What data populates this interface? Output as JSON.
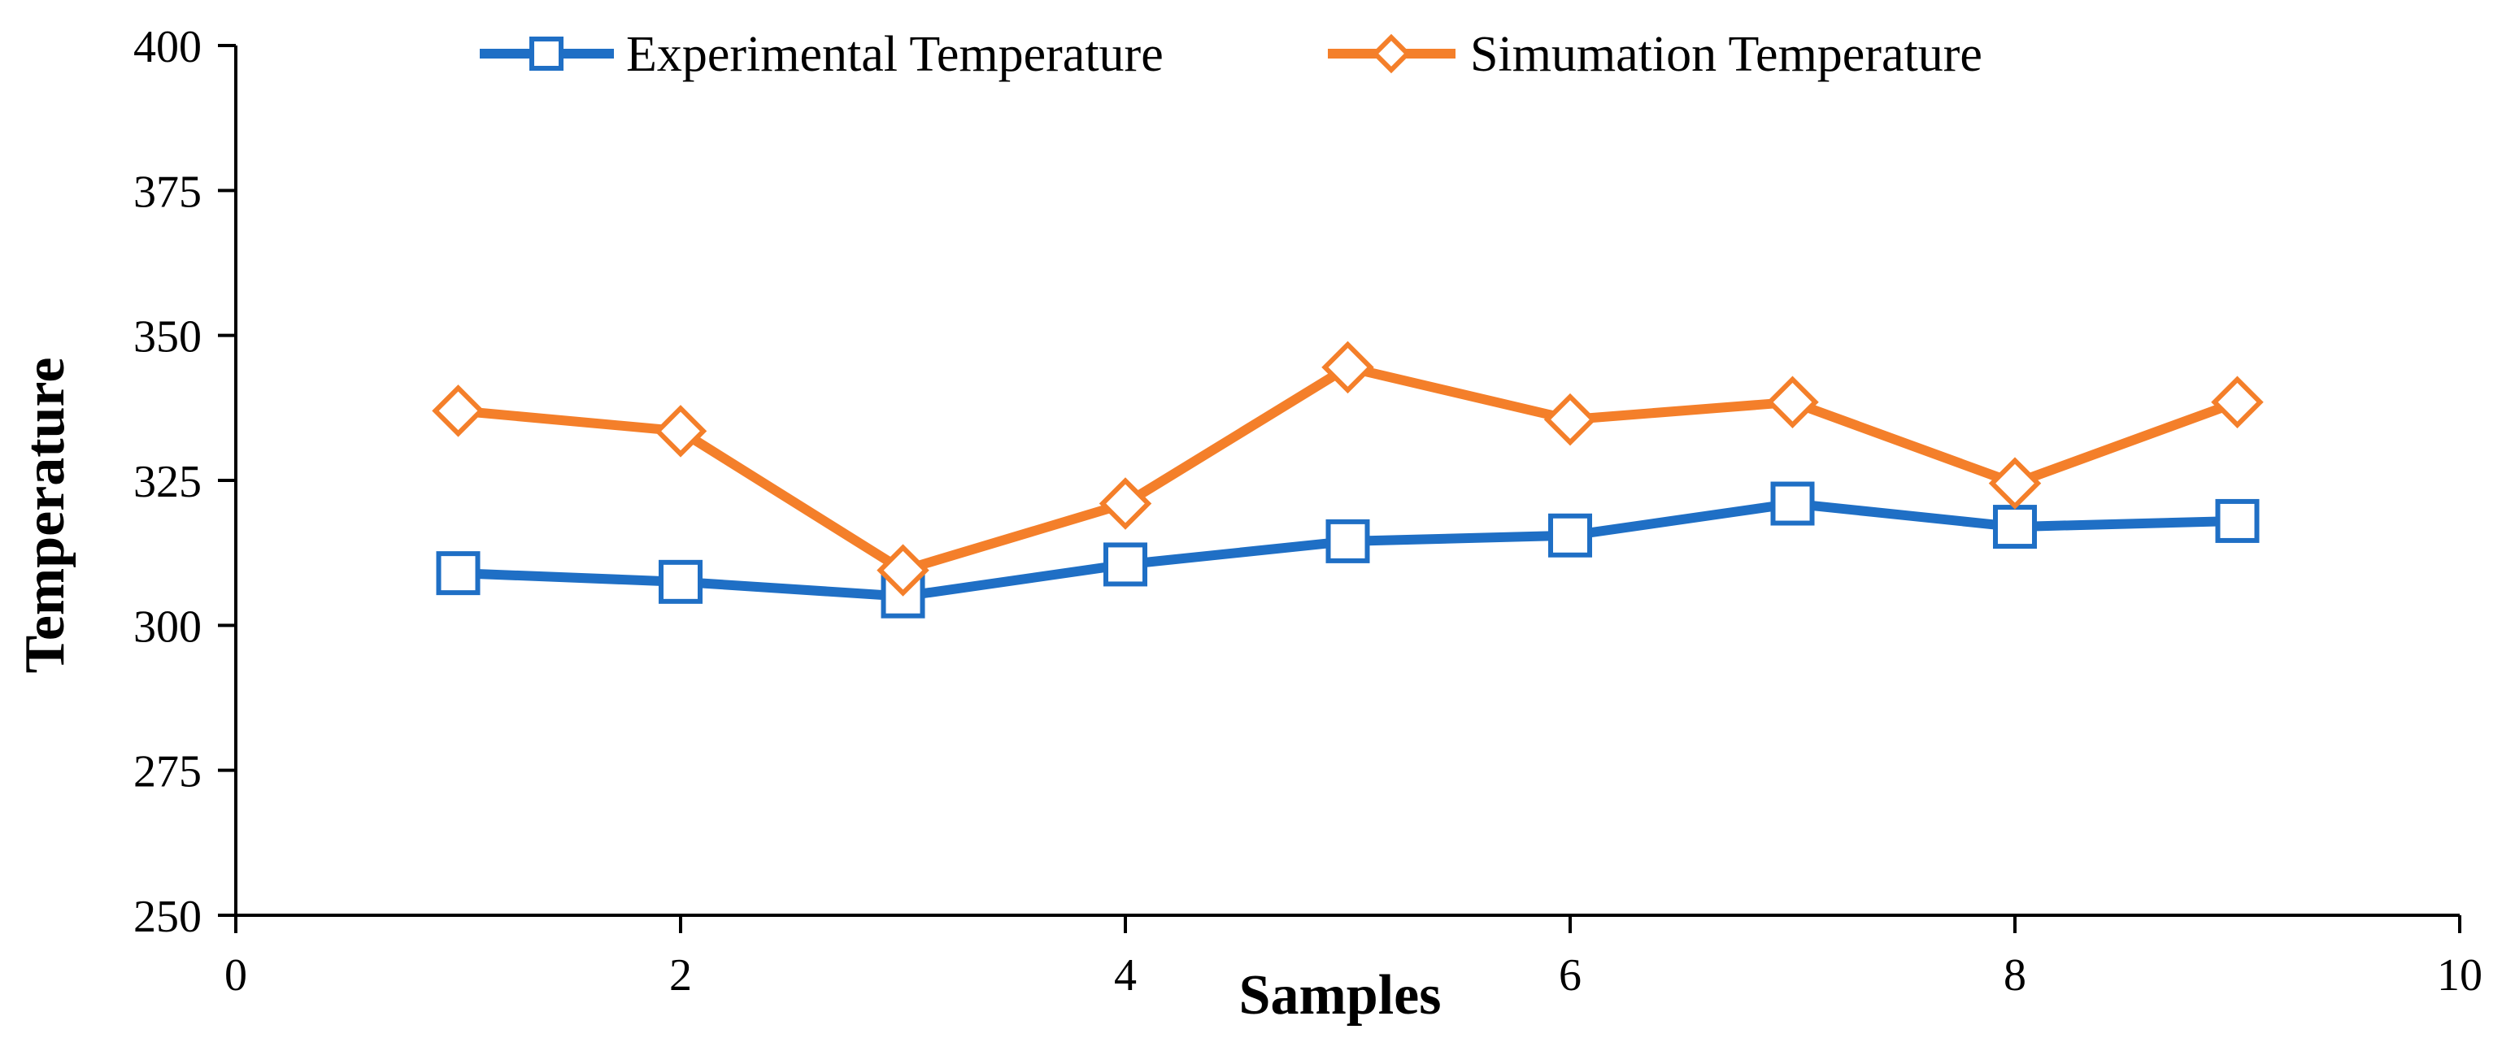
{
  "chart_data": {
    "type": "line",
    "title": "",
    "xlabel": "Samples",
    "ylabel": "Temperature",
    "xlim": [
      0,
      10
    ],
    "ylim": [
      250,
      400
    ],
    "xticks": [
      "0",
      "2",
      "4",
      "6",
      "8",
      "10"
    ],
    "yticks": [
      "250",
      "275",
      "300",
      "325",
      "350",
      "375",
      "400"
    ],
    "grid": false,
    "legend_position": "top-center",
    "x": [
      1,
      2,
      3,
      4,
      5,
      6,
      7,
      8,
      9
    ],
    "series": [
      {
        "name": "Experimental Temperature",
        "marker": "square",
        "color": "#1F6FC5",
        "values": [
          309,
          307.5,
          305,
          310.5,
          314.5,
          315.5,
          321,
          317,
          318
        ]
      },
      {
        "name": "Simumation Temperature",
        "marker": "diamond",
        "color": "#F47F2A",
        "values": [
          337,
          333.5,
          309.5,
          321,
          344.5,
          335.5,
          338.5,
          324.5,
          338.5
        ]
      }
    ]
  }
}
